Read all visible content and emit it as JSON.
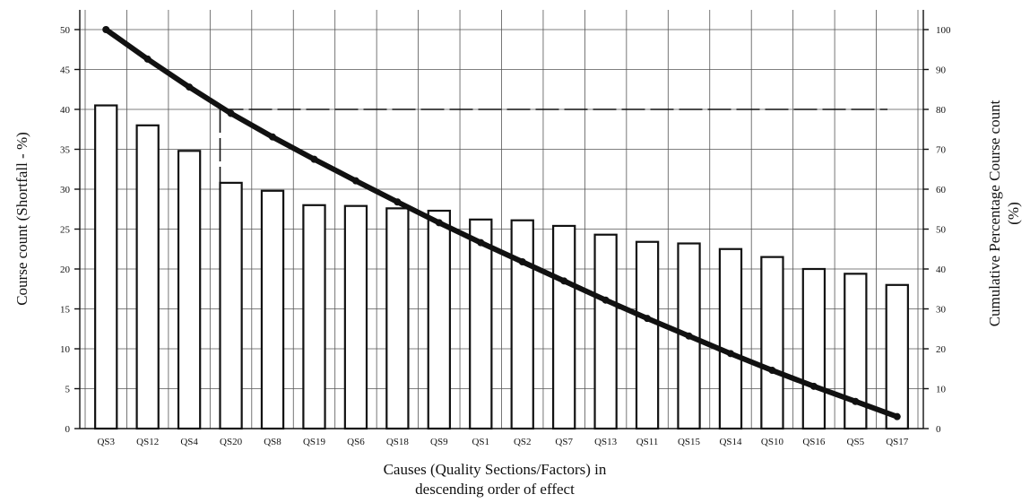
{
  "chart_data": {
    "type": "bar",
    "categories": [
      "QS3",
      "QS12",
      "QS4",
      "QS20",
      "QS8",
      "QS19",
      "QS6",
      "QS18",
      "QS9",
      "QS1",
      "QS2",
      "QS7",
      "QS13",
      "QS11",
      "QS15",
      "QS14",
      "QS10",
      "QS16",
      "QS5",
      "QS17"
    ],
    "series": [
      {
        "type": "bar",
        "axis": "left",
        "values": [
          40.5,
          38.0,
          34.8,
          30.8,
          29.8,
          28.0,
          27.9,
          27.6,
          27.3,
          26.2,
          26.1,
          25.4,
          24.3,
          23.4,
          23.2,
          22.5,
          21.5,
          20.0,
          19.4,
          18.0
        ]
      },
      {
        "type": "line",
        "axis": "right",
        "values": [
          100,
          92.6,
          85.6,
          79.0,
          73.1,
          67.5,
          62.1,
          56.8,
          51.6,
          46.6,
          41.8,
          37.0,
          32.2,
          27.6,
          23.2,
          18.8,
          14.6,
          10.6,
          6.8,
          3.0
        ]
      }
    ],
    "reference": {
      "cumulative_value": 80,
      "category": "QS20"
    },
    "xlabel": [
      "Causes (Quality Sections/Factors) in",
      "descending order of effect"
    ],
    "ylabel": "Course count (Shortfall - %)",
    "y2label": [
      "Cumulative Percentage Course count",
      "(%)"
    ],
    "ylim": [
      0,
      50
    ],
    "yticks": [
      "0",
      "5",
      "10",
      "15",
      "20",
      "25",
      "30",
      "35",
      "40",
      "45",
      "50"
    ],
    "y2lim": [
      0,
      100
    ],
    "y2ticks": [
      "0",
      "10",
      "20",
      "30",
      "40",
      "50",
      "60",
      "70",
      "80",
      "90",
      "100"
    ],
    "grid": true,
    "legend": "none"
  }
}
